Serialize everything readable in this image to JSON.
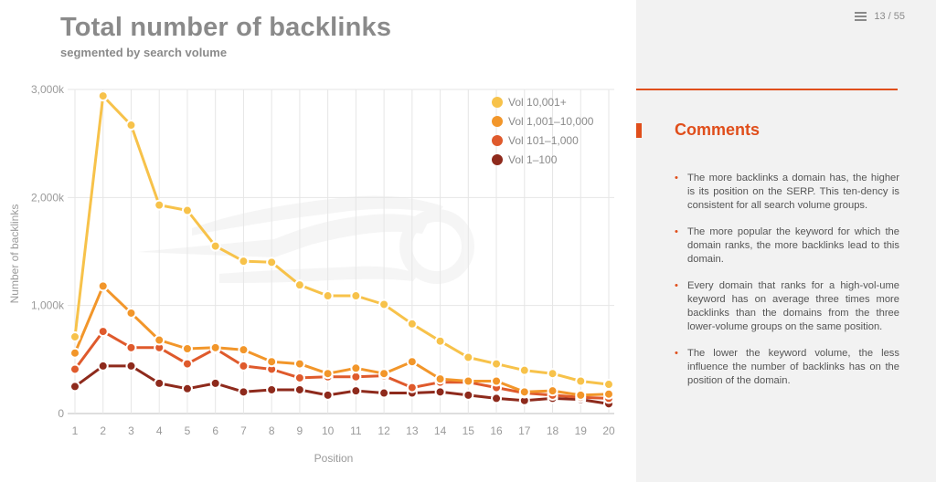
{
  "header": {
    "title": "Total number of backlinks",
    "subtitle": "segmented by search volume",
    "page_indicator": "13 / 55"
  },
  "comments": {
    "heading": "Comments",
    "items": [
      "The more backlinks a domain has, the higher is its position on the SERP. This ten-dency is consistent for all search volume groups.",
      "The more popular the keyword for which the domain ranks, the more backlinks lead to this domain.",
      "Every domain that ranks for a high-vol-ume keyword has on average three times more backlinks than the domains from the three lower-volume groups on the same position.",
      "The lower the keyword volume, the less influence the number of backlinks has on the position of the domain."
    ]
  },
  "colors": {
    "accent": "#e04e1b",
    "vol_10001_plus": "#f7c24a",
    "vol_1001_10000": "#f2962a",
    "vol_101_1000": "#df5a2c",
    "vol_1_100": "#8e2a1c"
  },
  "chart_data": {
    "type": "line",
    "title": "Total number of backlinks",
    "subtitle": "segmented by search volume",
    "xlabel": "Position",
    "ylabel": "Number of backlinks",
    "x": [
      1,
      2,
      3,
      4,
      5,
      6,
      7,
      8,
      9,
      10,
      11,
      12,
      13,
      14,
      15,
      16,
      17,
      18,
      19,
      20
    ],
    "ylim": [
      0,
      3000000
    ],
    "yticks": [
      0,
      1000000,
      2000000,
      3000000
    ],
    "ytick_labels": [
      "0",
      "1,000k",
      "2,000k",
      "3,000k"
    ],
    "grid": true,
    "legend_position": "top-right",
    "series": [
      {
        "name": "Vol 10,001+",
        "color": "#f7c24a",
        "values": [
          710000,
          2940000,
          2670000,
          1930000,
          1880000,
          1550000,
          1410000,
          1400000,
          1190000,
          1090000,
          1090000,
          1010000,
          830000,
          670000,
          520000,
          460000,
          400000,
          370000,
          300000,
          270000
        ]
      },
      {
        "name": "Vol 1,001–10,000",
        "color": "#f2962a",
        "values": [
          560000,
          1180000,
          930000,
          680000,
          600000,
          610000,
          590000,
          480000,
          460000,
          370000,
          420000,
          370000,
          480000,
          320000,
          300000,
          300000,
          200000,
          210000,
          170000,
          180000
        ]
      },
      {
        "name": "Vol 101–1,000",
        "color": "#df5a2c",
        "values": [
          410000,
          760000,
          610000,
          610000,
          460000,
          600000,
          440000,
          410000,
          330000,
          340000,
          340000,
          350000,
          240000,
          290000,
          290000,
          240000,
          190000,
          170000,
          150000,
          140000
        ]
      },
      {
        "name": "Vol 1–100",
        "color": "#8e2a1c",
        "values": [
          250000,
          440000,
          440000,
          280000,
          230000,
          280000,
          200000,
          220000,
          220000,
          170000,
          210000,
          190000,
          190000,
          200000,
          170000,
          140000,
          120000,
          140000,
          130000,
          90000
        ]
      }
    ]
  }
}
